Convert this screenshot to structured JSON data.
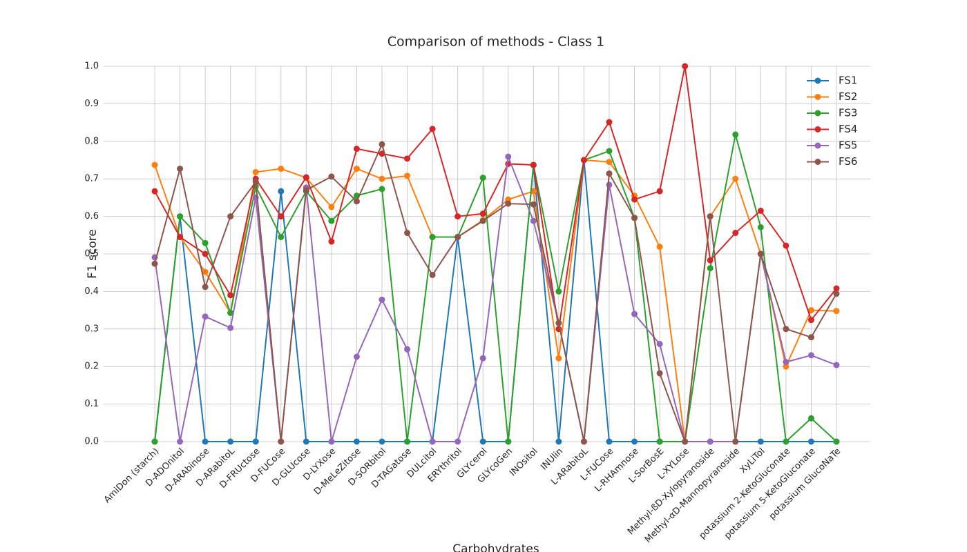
{
  "chart_data": {
    "type": "line",
    "title": "Comparison of methods - Class 1",
    "x_label": "Carbohydrates",
    "y_label": "F1 score",
    "categories": [
      "AmiDon (starch)",
      "D-ADOnitol",
      "D-ARAbinose",
      "D-ARabitoL",
      "D-FRUctose",
      "D-FUCose",
      "D-GLUcose",
      "D-LYXose",
      "D-MeLeZitose",
      "D-SORbitol",
      "D-TAGatose",
      "DULcitol",
      "ERYthritol",
      "GLYcerol",
      "GLYcoGen",
      "INOsitol",
      "INUlin",
      "L-ARabitoL",
      "L-FUCose",
      "L-RHAmnose",
      "L-SorBosE",
      "L-XYLose",
      "Methyl-ßD-Xylopyranoside",
      "Methyl-αD-Mannopyranoside",
      "XyLiTol",
      "potassium 2-KetoGluconate",
      "potassium 5-KetoGluconate",
      "potassium GlucoNaTe"
    ],
    "series": [
      {
        "name": "FS1",
        "color": "#1f77b4",
        "values": [
          0,
          0.6,
          0,
          0,
          0,
          0.667,
          0,
          0,
          0,
          0,
          0,
          0,
          0.545,
          0,
          0,
          0.737,
          0,
          0.75,
          0,
          0,
          0,
          0,
          0,
          0,
          0,
          0,
          0,
          0
        ]
      },
      {
        "name": "FS2",
        "color": "#ff7f0e",
        "values": [
          0.737,
          0.545,
          0.452,
          0.343,
          0.718,
          0.727,
          0.703,
          0.625,
          0.727,
          0.7,
          0.708,
          0.545,
          0.545,
          0.59,
          0.645,
          0.667,
          0.222,
          0.75,
          0.745,
          0.655,
          0.519,
          0,
          0.6,
          0.7,
          0.5,
          0.2,
          0.35,
          0.348
        ]
      },
      {
        "name": "FS3",
        "color": "#2ca02c",
        "values": [
          0,
          0.6,
          0.529,
          0.343,
          0.68,
          0.545,
          0.667,
          0.588,
          0.655,
          0.673,
          0,
          0.545,
          0.545,
          0.703,
          0,
          0.737,
          0.4,
          0.75,
          0.774,
          0.596,
          0,
          0,
          0.462,
          0.818,
          0.571,
          0,
          0.062,
          0
        ]
      },
      {
        "name": "FS4",
        "color": "#d62728",
        "values": [
          0.667,
          0.545,
          0.5,
          0.39,
          0.7,
          0.6,
          0.704,
          0.533,
          0.78,
          0.767,
          0.754,
          0.833,
          0.6,
          0.607,
          0.74,
          0.737,
          0.3,
          0.75,
          0.851,
          0.645,
          0.667,
          1.0,
          0.483,
          0.556,
          0.615,
          0.522,
          0.324,
          0.408
        ]
      },
      {
        "name": "FS5",
        "color": "#9467bd",
        "values": [
          0.491,
          0,
          0.333,
          0.303,
          0.65,
          0,
          0.677,
          0,
          0.226,
          0.378,
          0.246,
          0,
          0,
          0.222,
          0.759,
          0.588,
          0.316,
          0,
          0.684,
          0.34,
          0.26,
          0,
          0,
          0,
          0.5,
          0.212,
          0.23,
          0.204
        ]
      },
      {
        "name": "FS6",
        "color": "#8c564b",
        "values": [
          0.474,
          0.727,
          0.412,
          0.6,
          0.692,
          0,
          0.67,
          0.706,
          0.64,
          0.792,
          0.556,
          0.444,
          0.545,
          0.588,
          0.634,
          0.632,
          0.316,
          0,
          0.714,
          0.596,
          0.182,
          0,
          0.6,
          0,
          0.5,
          0.3,
          0.278,
          0.394
        ]
      }
    ],
    "ylim": [
      0,
      1.0
    ],
    "yticks": [
      {
        "value": 0,
        "label": "0.0"
      },
      0.1,
      0.2,
      0.3,
      0.4,
      0.5,
      0.6,
      0.7,
      0.8,
      0.9,
      {
        "value": 1.0,
        "label": "1.0"
      }
    ],
    "grid": true,
    "legend": "upper right"
  }
}
